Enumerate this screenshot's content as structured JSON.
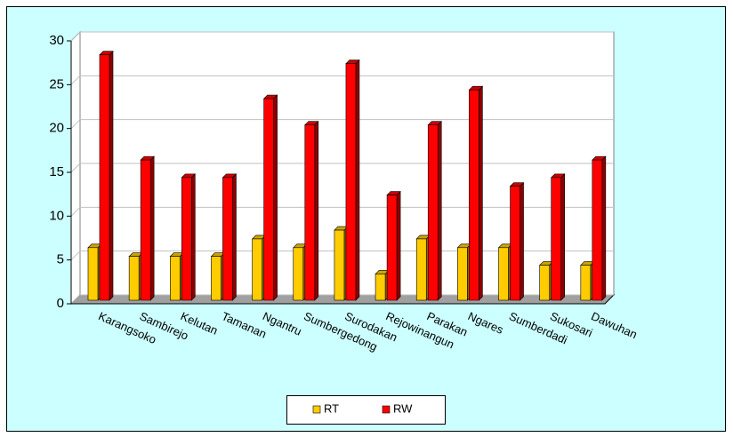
{
  "chart_data": {
    "type": "bar3d",
    "categories": [
      "Karangsoko",
      "Sambirejo",
      "Kelutan",
      "Tamanan",
      "Ngantru",
      "Sumbergedong",
      "Surodakan",
      "Rejowinangun",
      "Parakan",
      "Ngares",
      "Sumberdadi",
      "Sukosari",
      "Dawuhan"
    ],
    "series": [
      {
        "name": "RT",
        "color": "#ffcc00",
        "values": [
          6,
          5,
          5,
          5,
          7,
          6,
          8,
          3,
          7,
          6,
          6,
          4,
          4
        ]
      },
      {
        "name": "RW",
        "color": "#ff0000",
        "values": [
          28,
          16,
          14,
          14,
          23,
          20,
          27,
          12,
          20,
          24,
          13,
          14,
          16
        ]
      }
    ],
    "ylim": [
      0,
      30
    ],
    "yticks": [
      0,
      5,
      10,
      15,
      20,
      25,
      30
    ],
    "grid": true,
    "legend": "bottom"
  }
}
